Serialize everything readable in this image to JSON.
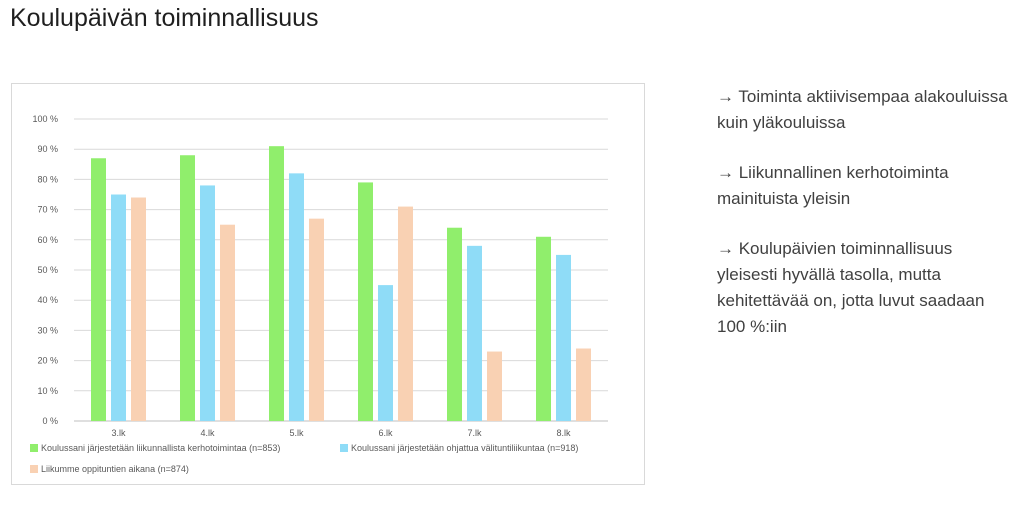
{
  "title": "Koulupäivän toiminnallisuus",
  "notes": [
    "→ Toiminta aktiivisempaa alakouluissa kuin yläkouluissa",
    "→ Liikunnallinen kerhotoiminta mainituista yleisin",
    "→ Koulupäivien toiminnallisuus yleisesti hyvällä tasolla, mutta kehitettävää on, jotta luvut saadaan 100 %:iin"
  ],
  "chart_data": {
    "type": "bar",
    "categories": [
      "3.lk",
      "4.lk",
      "5.lk",
      "6.lk",
      "7.lk",
      "8.lk"
    ],
    "series": [
      {
        "name": "Koulussani järjestetään liikunnallista kerhotoimintaa (n=853)",
        "values": [
          87,
          88,
          91,
          79,
          64,
          61
        ],
        "color": "#90ee6c"
      },
      {
        "name": "Koulussani järjestetään ohjattua välituntiliikuntaa (n=918)",
        "values": [
          75,
          78,
          82,
          45,
          58,
          55
        ],
        "color": "#8fdcf7"
      },
      {
        "name": "Liikumme oppituntien aikana (n=874)",
        "values": [
          74,
          65,
          67,
          71,
          23,
          24
        ],
        "color": "#f9d1b3"
      }
    ],
    "yticks": [
      "0 %",
      "10 %",
      "20 %",
      "30 %",
      "40 %",
      "50 %",
      "60 %",
      "70 %",
      "80 %",
      "90 %",
      "100 %"
    ],
    "ylim": [
      0,
      100
    ],
    "grid": true,
    "legend_position": "bottom"
  }
}
